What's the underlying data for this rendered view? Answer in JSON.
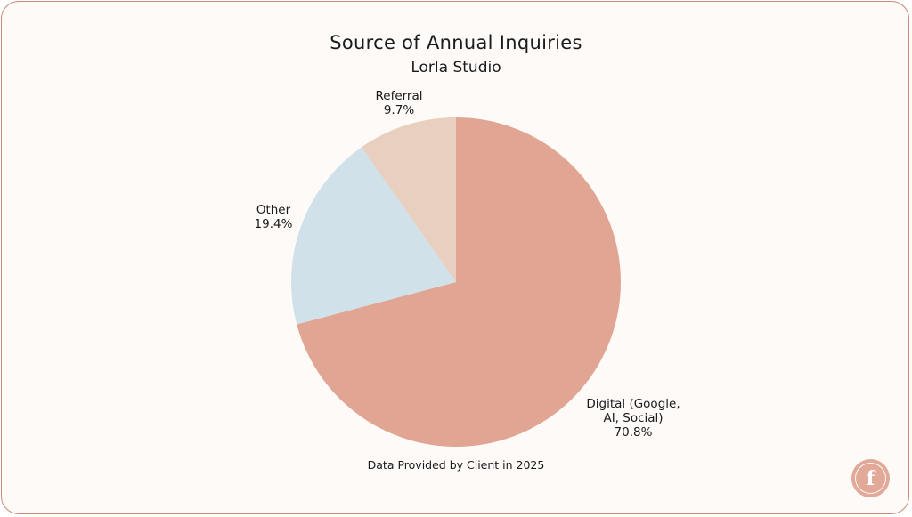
{
  "chart_data": {
    "type": "pie",
    "title": "Source of Annual Inquiries",
    "subtitle": "Lorla Studio",
    "footnote": "Data Provided by Client in 2025",
    "slices": [
      {
        "name": "Digital (Google, AI, Social)",
        "label_lines": [
          "Digital (Google,",
          "AI, Social)"
        ],
        "value": 70.8,
        "display": "70.8%",
        "color": "#e0a593"
      },
      {
        "name": "Other",
        "label_lines": [
          "Other"
        ],
        "value": 19.4,
        "display": "19.4%",
        "color": "#d0e1ea"
      },
      {
        "name": "Referral",
        "label_lines": [
          "Referral"
        ],
        "value": 9.7,
        "display": "9.7%",
        "color": "#e8cfbf"
      }
    ],
    "start": "12 o'clock",
    "direction": "clockwise"
  },
  "logo": {
    "letter": "f",
    "color": "#e2a898"
  }
}
